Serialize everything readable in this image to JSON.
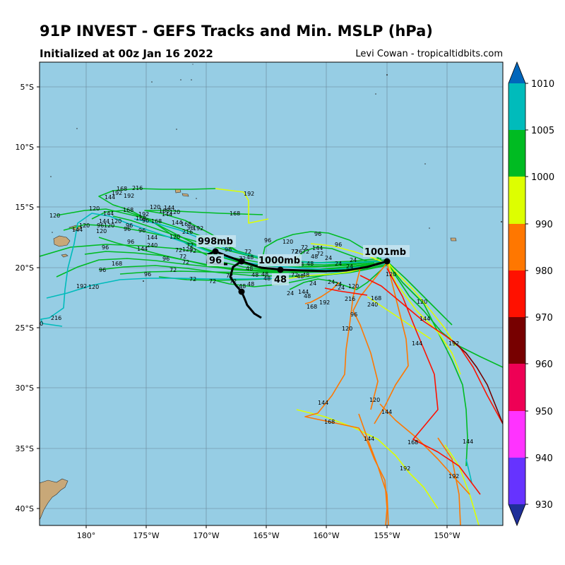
{
  "header": {
    "title": "91P INVEST - GEFS Tracks and Min. MSLP (hPa)",
    "subtitle": "Initialized at 00z Jan 16 2022",
    "credit": "Levi Cowan - tropicaltidbits.com"
  },
  "map": {
    "lon_labels": [
      "180°",
      "175°W",
      "170°W",
      "165°W",
      "160°W",
      "155°W",
      "150°W"
    ],
    "lat_labels": [
      "5°S",
      "10°S",
      "15°S",
      "20°S",
      "25°S",
      "30°S",
      "35°S",
      "40°S"
    ],
    "ocean_color": "#96cde4",
    "land_color": "#c8a878",
    "grid": true
  },
  "mean_track": {
    "pressure_labels": [
      "998mb",
      "1000mb",
      "1001mb"
    ],
    "hour_labels": [
      "96",
      "48"
    ]
  },
  "colorbar": {
    "ticks": [
      "1010",
      "1005",
      "1000",
      "990",
      "980",
      "970",
      "960",
      "950",
      "940",
      "930"
    ],
    "colors": [
      "#1f2f99",
      "#6633ff",
      "#ff33ff",
      "#ee0055",
      "#770000",
      "#ff1100",
      "#ff7700",
      "#ddff00",
      "#00bb22",
      "#00bbbb",
      "#0066bb"
    ]
  },
  "legend_colors": {
    "green": "#00bb22",
    "lime": "#ddff00",
    "orange": "#ff7700",
    "red": "#ff1100",
    "darkred": "#770000",
    "cyan": "#00bbbb"
  }
}
